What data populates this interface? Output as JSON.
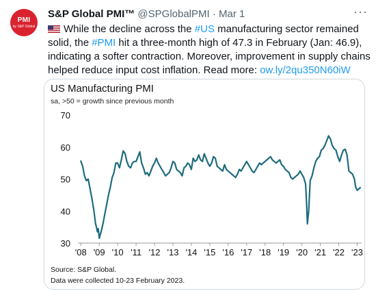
{
  "account": {
    "avatar_line1": "PMI",
    "avatar_line2": "by S&P Global",
    "display_name": "S&P Global PMI™",
    "handle": "@SPGlobalPMI",
    "separator": "·",
    "date": "Mar 1"
  },
  "more_icon": "more-horizontal-icon",
  "tweet": {
    "flag_icon": "us-flag-icon",
    "t1": "While the decline across the ",
    "h1": "#US",
    "t2": " manufacturing sector remained solid, the ",
    "h2": "#PMI",
    "t3": " hit a three-month high of 47.3 in February (Jan: 46.9), indicating a softer contraction. Moreover, improvement in supply chains helped reduce input cost inflation. Read more: ",
    "link": "ow.ly/2qu350N60iW"
  },
  "colors": {
    "line": "#1d6b7d",
    "link": "#1d9bf0",
    "brand": "#d9232f",
    "axis": "#999999"
  },
  "chart_data": {
    "type": "line",
    "title": "US Manufacturing PMI",
    "subtitle": "sa, >50 = growth since previous month",
    "xlabel": "",
    "ylabel": "",
    "ylim": [
      30,
      70
    ],
    "yticks": [
      30,
      40,
      50,
      60,
      70
    ],
    "xlim": [
      2007.917,
      2023.167
    ],
    "xticks": [
      {
        "x": 2008,
        "label": "'08"
      },
      {
        "x": 2009,
        "label": "'09"
      },
      {
        "x": 2010,
        "label": "'10"
      },
      {
        "x": 2011,
        "label": "'11"
      },
      {
        "x": 2012,
        "label": "'12"
      },
      {
        "x": 2013,
        "label": "'13"
      },
      {
        "x": 2014,
        "label": "'14"
      },
      {
        "x": 2015,
        "label": "'15"
      },
      {
        "x": 2016,
        "label": "'16"
      },
      {
        "x": 2017,
        "label": "'17"
      },
      {
        "x": 2018,
        "label": "'18"
      },
      {
        "x": 2019,
        "label": "'19"
      },
      {
        "x": 2020,
        "label": "'20"
      },
      {
        "x": 2021,
        "label": "'21"
      },
      {
        "x": 2022,
        "label": "'22"
      },
      {
        "x": 2023,
        "label": "'23"
      }
    ],
    "grid": false,
    "series": [
      {
        "values": [
          [
            2008.0,
            55.6
          ],
          [
            2008.1,
            54.0
          ],
          [
            2008.2,
            51.0
          ],
          [
            2008.3,
            49.5
          ],
          [
            2008.4,
            50.0
          ],
          [
            2008.5,
            47.0
          ],
          [
            2008.6,
            44.0
          ],
          [
            2008.7,
            40.5
          ],
          [
            2008.8,
            36.0
          ],
          [
            2008.85,
            35.0
          ],
          [
            2008.9,
            33.5
          ],
          [
            2008.95,
            34.5
          ],
          [
            2009.0,
            31.5
          ],
          [
            2009.1,
            33.5
          ],
          [
            2009.2,
            36.0
          ],
          [
            2009.3,
            39.0
          ],
          [
            2009.4,
            42.0
          ],
          [
            2009.5,
            45.0
          ],
          [
            2009.6,
            47.5
          ],
          [
            2009.7,
            50.5
          ],
          [
            2009.8,
            52.0
          ],
          [
            2009.9,
            55.0
          ],
          [
            2010.0,
            55.0
          ],
          [
            2010.1,
            53.5
          ],
          [
            2010.2,
            56.0
          ],
          [
            2010.3,
            58.8
          ],
          [
            2010.4,
            58.0
          ],
          [
            2010.5,
            55.5
          ],
          [
            2010.6,
            54.0
          ],
          [
            2010.7,
            53.5
          ],
          [
            2010.8,
            55.0
          ],
          [
            2010.9,
            55.5
          ],
          [
            2011.0,
            55.5
          ],
          [
            2011.1,
            57.0
          ],
          [
            2011.2,
            58.5
          ],
          [
            2011.3,
            55.0
          ],
          [
            2011.4,
            53.5
          ],
          [
            2011.5,
            51.5
          ],
          [
            2011.6,
            52.0
          ],
          [
            2011.7,
            51.0
          ],
          [
            2011.8,
            52.5
          ],
          [
            2011.9,
            54.0
          ],
          [
            2012.0,
            55.0
          ],
          [
            2012.1,
            56.5
          ],
          [
            2012.2,
            55.0
          ],
          [
            2012.3,
            54.0
          ],
          [
            2012.4,
            53.0
          ],
          [
            2012.5,
            52.0
          ],
          [
            2012.6,
            51.0
          ],
          [
            2012.7,
            51.5
          ],
          [
            2012.8,
            52.0
          ],
          [
            2012.9,
            53.5
          ],
          [
            2013.0,
            55.5
          ],
          [
            2013.1,
            55.0
          ],
          [
            2013.2,
            53.0
          ],
          [
            2013.3,
            52.5
          ],
          [
            2013.4,
            52.0
          ],
          [
            2013.5,
            51.0
          ],
          [
            2013.6,
            53.5
          ],
          [
            2013.7,
            54.0
          ],
          [
            2013.8,
            55.0
          ],
          [
            2013.9,
            54.5
          ],
          [
            2014.0,
            53.0
          ],
          [
            2014.1,
            56.5
          ],
          [
            2014.2,
            55.5
          ],
          [
            2014.3,
            56.0
          ],
          [
            2014.4,
            57.5
          ],
          [
            2014.5,
            56.0
          ],
          [
            2014.6,
            55.5
          ],
          [
            2014.7,
            57.9
          ],
          [
            2014.8,
            56.5
          ],
          [
            2014.9,
            55.0
          ],
          [
            2015.0,
            54.0
          ],
          [
            2015.1,
            55.0
          ],
          [
            2015.2,
            57.0
          ],
          [
            2015.3,
            56.5
          ],
          [
            2015.4,
            54.0
          ],
          [
            2015.5,
            53.5
          ],
          [
            2015.6,
            53.0
          ],
          [
            2015.7,
            52.5
          ],
          [
            2015.8,
            54.5
          ],
          [
            2015.9,
            53.0
          ],
          [
            2016.0,
            52.5
          ],
          [
            2016.1,
            52.0
          ],
          [
            2016.2,
            51.5
          ],
          [
            2016.3,
            51.0
          ],
          [
            2016.4,
            50.5
          ],
          [
            2016.5,
            51.5
          ],
          [
            2016.6,
            53.0
          ],
          [
            2016.7,
            52.5
          ],
          [
            2016.8,
            53.5
          ],
          [
            2016.9,
            54.5
          ],
          [
            2017.0,
            55.5
          ],
          [
            2017.1,
            54.5
          ],
          [
            2017.2,
            53.5
          ],
          [
            2017.3,
            52.5
          ],
          [
            2017.4,
            52.0
          ],
          [
            2017.5,
            53.0
          ],
          [
            2017.6,
            54.0
          ],
          [
            2017.7,
            55.0
          ],
          [
            2017.8,
            54.5
          ],
          [
            2017.9,
            55.0
          ],
          [
            2018.0,
            55.5
          ],
          [
            2018.1,
            56.0
          ],
          [
            2018.2,
            56.5
          ],
          [
            2018.3,
            57.0
          ],
          [
            2018.4,
            56.0
          ],
          [
            2018.5,
            55.5
          ],
          [
            2018.6,
            55.0
          ],
          [
            2018.7,
            55.5
          ],
          [
            2018.8,
            56.0
          ],
          [
            2018.9,
            54.5
          ],
          [
            2019.0,
            54.0
          ],
          [
            2019.1,
            53.0
          ],
          [
            2019.2,
            52.5
          ],
          [
            2019.3,
            52.0
          ],
          [
            2019.4,
            50.5
          ],
          [
            2019.5,
            50.0
          ],
          [
            2019.6,
            50.5
          ],
          [
            2019.7,
            51.0
          ],
          [
            2019.8,
            51.5
          ],
          [
            2019.9,
            52.5
          ],
          [
            2020.0,
            51.5
          ],
          [
            2020.1,
            50.5
          ],
          [
            2020.2,
            48.5
          ],
          [
            2020.25,
            43.0
          ],
          [
            2020.3,
            36.0
          ],
          [
            2020.37,
            40.0
          ],
          [
            2020.45,
            49.5
          ],
          [
            2020.55,
            51.0
          ],
          [
            2020.65,
            53.5
          ],
          [
            2020.75,
            55.5
          ],
          [
            2020.85,
            56.5
          ],
          [
            2020.95,
            57.0
          ],
          [
            2021.05,
            59.0
          ],
          [
            2021.15,
            59.5
          ],
          [
            2021.25,
            60.5
          ],
          [
            2021.35,
            62.0
          ],
          [
            2021.45,
            63.5
          ],
          [
            2021.55,
            62.5
          ],
          [
            2021.65,
            60.5
          ],
          [
            2021.75,
            59.5
          ],
          [
            2021.85,
            59.0
          ],
          [
            2021.95,
            57.0
          ],
          [
            2022.05,
            55.5
          ],
          [
            2022.15,
            57.5
          ],
          [
            2022.25,
            59.0
          ],
          [
            2022.35,
            59.3
          ],
          [
            2022.45,
            57.5
          ],
          [
            2022.55,
            52.5
          ],
          [
            2022.65,
            52.0
          ],
          [
            2022.75,
            51.5
          ],
          [
            2022.85,
            50.0
          ],
          [
            2022.92,
            47.5
          ],
          [
            2023.0,
            46.5
          ],
          [
            2023.083,
            46.9
          ],
          [
            2023.167,
            47.3
          ]
        ]
      }
    ],
    "source": "Source: S&P Global.",
    "note": "Data were collected 10-23 February 2023."
  }
}
